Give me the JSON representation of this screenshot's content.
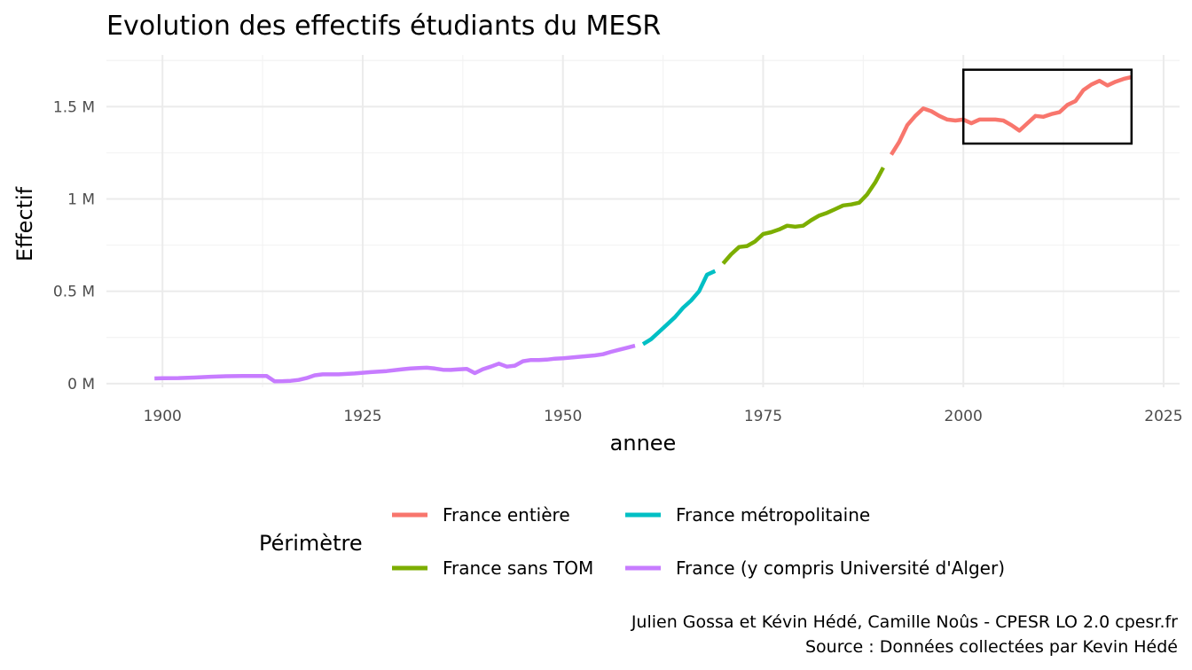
{
  "chart_data": {
    "type": "line",
    "title": "Evolution des effectifs étudiants du MESR",
    "xlabel": "annee",
    "ylabel": "Effectif",
    "xlim": [
      1893,
      2027
    ],
    "ylim": [
      -20000,
      1780000
    ],
    "x_ticks": [
      1900,
      1925,
      1950,
      1975,
      2000,
      2025
    ],
    "x_tick_labels": [
      "1900",
      "1925",
      "1950",
      "1975",
      "2000",
      "2025"
    ],
    "y_ticks": [
      0,
      500000,
      1000000,
      1500000
    ],
    "y_tick_labels": [
      "0 M",
      "0.5 M",
      "1 M",
      "1.5 M"
    ],
    "grid": true,
    "legend": {
      "title": "Périmètre",
      "position": "bottom",
      "entries": [
        "France entière",
        "France métropolitaine",
        "France sans TOM",
        "France (y compris Université d'Alger)"
      ]
    },
    "series": [
      {
        "name": "France (y compris Université d'Alger)",
        "color": "#C77CFF",
        "x": [
          1899,
          1900,
          1902,
          1904,
          1906,
          1908,
          1910,
          1912,
          1913,
          1914,
          1915,
          1916,
          1917,
          1918,
          1919,
          1920,
          1921,
          1922,
          1924,
          1926,
          1928,
          1930,
          1931,
          1932,
          1933,
          1934,
          1935,
          1936,
          1937,
          1938,
          1939,
          1940,
          1941,
          1942,
          1943,
          1944,
          1945,
          1946,
          1947,
          1948,
          1949,
          1950,
          1952,
          1954,
          1955,
          1956,
          1957,
          1958,
          1959
        ],
        "y": [
          28000,
          29000,
          30000,
          33000,
          37000,
          40000,
          41000,
          41000,
          41000,
          12000,
          13000,
          15000,
          20000,
          30000,
          45000,
          50000,
          50000,
          50000,
          55000,
          62000,
          68000,
          78000,
          82000,
          84000,
          86000,
          82000,
          75000,
          74000,
          77000,
          80000,
          57000,
          78000,
          92000,
          108000,
          92000,
          97000,
          121000,
          128000,
          128000,
          130000,
          135000,
          137000,
          145000,
          153000,
          159000,
          172000,
          183000,
          194000,
          205000
        ]
      },
      {
        "name": "France métropolitaine",
        "color": "#00BFC4",
        "x": [
          1960,
          1961,
          1962,
          1963,
          1964,
          1965,
          1966,
          1967,
          1968,
          1969
        ],
        "y": [
          214000,
          240000,
          280000,
          320000,
          360000,
          410000,
          450000,
          500000,
          590000,
          610000
        ]
      },
      {
        "name": "France sans TOM",
        "color": "#7CAE00",
        "x": [
          1970,
          1971,
          1972,
          1973,
          1974,
          1975,
          1976,
          1977,
          1978,
          1979,
          1980,
          1981,
          1982,
          1983,
          1984,
          1985,
          1986,
          1987,
          1988,
          1989,
          1990
        ],
        "y": [
          650000,
          700000,
          740000,
          745000,
          770000,
          810000,
          820000,
          835000,
          855000,
          850000,
          855000,
          885000,
          910000,
          925000,
          945000,
          965000,
          970000,
          980000,
          1025000,
          1090000,
          1170000
        ]
      },
      {
        "name": "France entière",
        "color": "#F8766D",
        "x": [
          1991,
          1992,
          1993,
          1994,
          1995,
          1996,
          1997,
          1998,
          1999,
          2000,
          2001,
          2002,
          2003,
          2004,
          2005,
          2006,
          2007,
          2008,
          2009,
          2010,
          2011,
          2012,
          2013,
          2014,
          2015,
          2016,
          2017,
          2018,
          2019,
          2020,
          2021
        ],
        "y": [
          1240000,
          1310000,
          1400000,
          1450000,
          1490000,
          1475000,
          1450000,
          1430000,
          1425000,
          1430000,
          1410000,
          1430000,
          1430000,
          1430000,
          1425000,
          1400000,
          1370000,
          1410000,
          1450000,
          1445000,
          1460000,
          1470000,
          1510000,
          1530000,
          1590000,
          1620000,
          1640000,
          1615000,
          1635000,
          1650000,
          1660000
        ]
      }
    ],
    "highlight_box": {
      "x": [
        2000,
        2021
      ],
      "y": [
        1300000,
        1700000
      ]
    }
  },
  "caption": {
    "line1": "Julien Gossa et Kévin Hédé, Camille Noûs - CPESR LO 2.0 cpesr.fr",
    "line2": "Source : Données collectées par Kevin Hédé"
  }
}
